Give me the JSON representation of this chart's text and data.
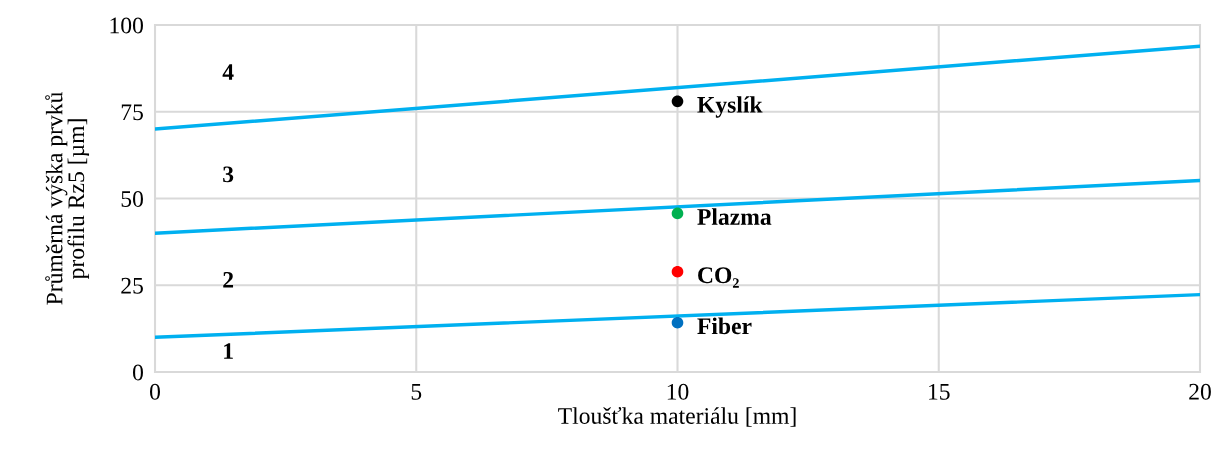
{
  "chart_data": {
    "type": "line",
    "xlabel": "Tloušťka materiálu [mm]",
    "ylabel": "Průměrná výška prvků\nprofilu Rz5 [µm]",
    "xlim": [
      0,
      20
    ],
    "ylim": [
      0,
      100
    ],
    "xticks": [
      0,
      5,
      10,
      15,
      20
    ],
    "yticks": [
      0,
      25,
      50,
      75,
      100
    ],
    "grid": true,
    "legend": false,
    "series": [
      {
        "color": "#00b0f0",
        "x": [
          0,
          20
        ],
        "values": [
          10,
          22.3
        ]
      },
      {
        "color": "#00b0f0",
        "x": [
          0,
          20
        ],
        "values": [
          40,
          55.2
        ]
      },
      {
        "color": "#00b0f0",
        "x": [
          0,
          20
        ],
        "values": [
          70,
          93.9
        ]
      },
      {
        "type": "scatter",
        "name": "Kyslík",
        "color": "#000000",
        "x": [
          10
        ],
        "values": [
          78
        ]
      },
      {
        "type": "scatter",
        "name": "Plazma",
        "color": "#00b050",
        "x": [
          10
        ],
        "values": [
          45.7
        ]
      },
      {
        "type": "scatter",
        "name": "CO₂",
        "color": "#ff0000",
        "x": [
          10
        ],
        "values": [
          28.9
        ]
      },
      {
        "type": "scatter",
        "name": "Fiber",
        "color": "#0070c0",
        "x": [
          10
        ],
        "values": [
          14.2
        ]
      }
    ],
    "annotations": [
      "4",
      "3",
      "2",
      "1"
    ]
  }
}
